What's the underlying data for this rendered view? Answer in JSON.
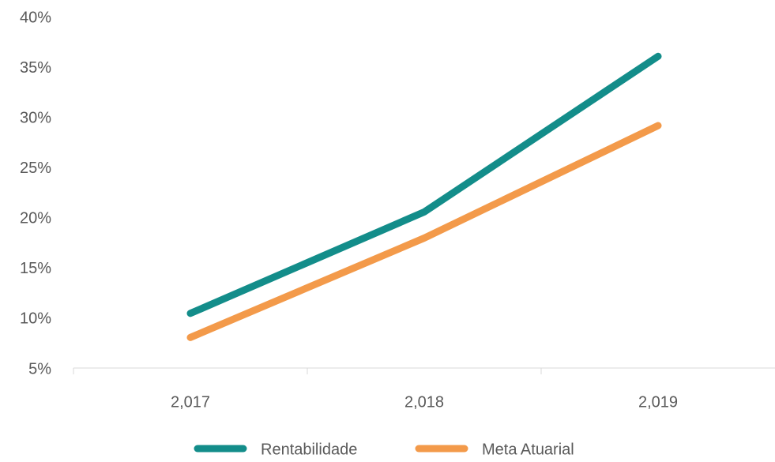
{
  "chart_data": {
    "type": "line",
    "categories": [
      "2,017",
      "2,018",
      "2,019"
    ],
    "series": [
      {
        "name": "Rentabilidade",
        "color": "#138d8a",
        "values": [
          10.6,
          20.7,
          36.2
        ]
      },
      {
        "name": "Meta Atuarial",
        "color": "#f39a4a",
        "values": [
          8.2,
          18.1,
          29.3
        ]
      }
    ],
    "ylim": [
      5,
      40
    ],
    "yticks": [
      {
        "value": 5,
        "label": "5%"
      },
      {
        "value": 10,
        "label": "10%"
      },
      {
        "value": 15,
        "label": "15%"
      },
      {
        "value": 20,
        "label": "20%"
      },
      {
        "value": 25,
        "label": "25%"
      },
      {
        "value": 30,
        "label": "30%"
      },
      {
        "value": 35,
        "label": "35%"
      },
      {
        "value": 40,
        "label": "40%"
      }
    ],
    "grid": false,
    "legend": "bottom"
  }
}
